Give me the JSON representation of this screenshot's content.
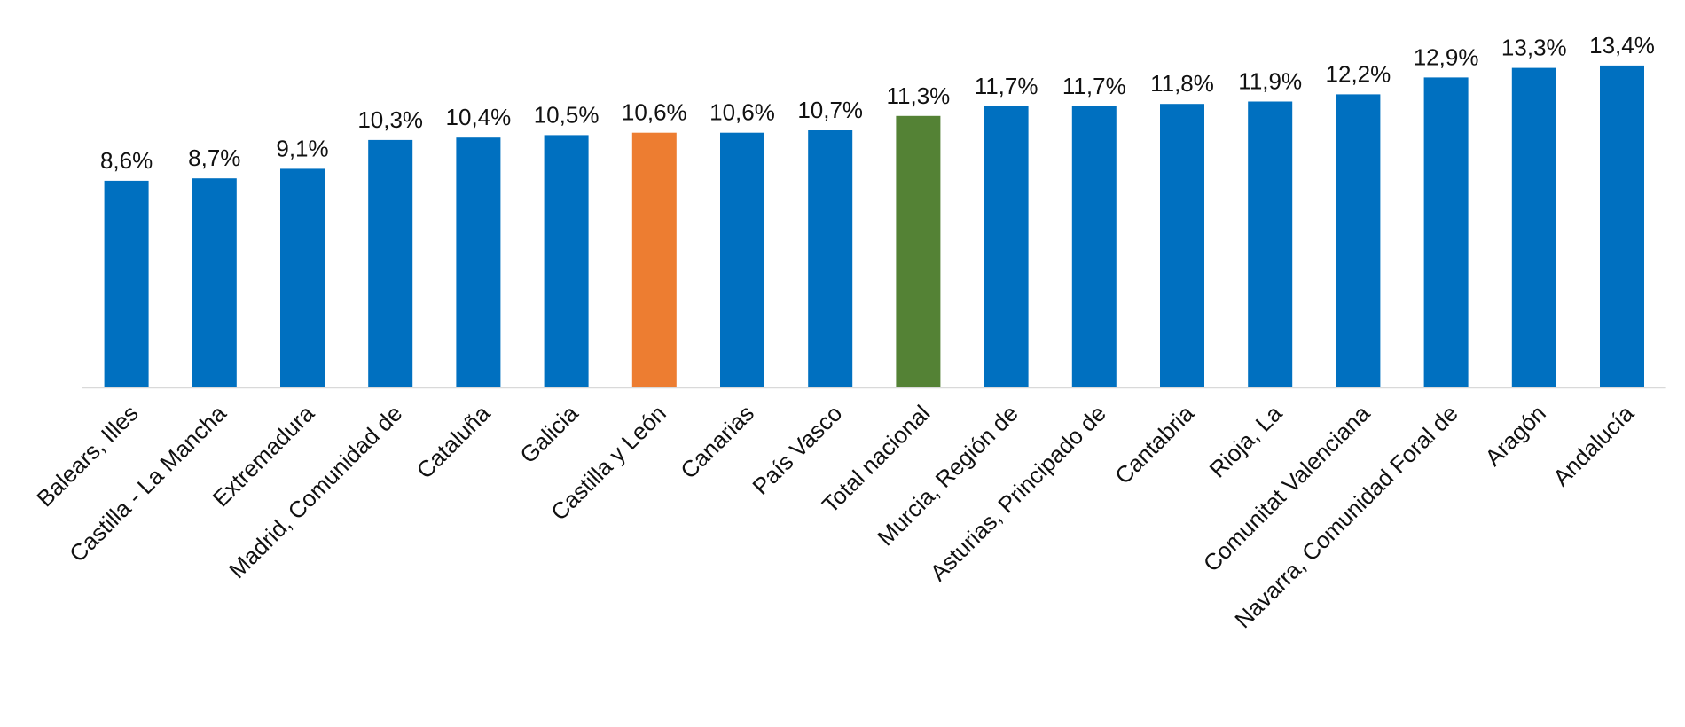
{
  "chart_data": {
    "type": "bar",
    "title": "",
    "xlabel": "",
    "ylabel": "",
    "categories": [
      "Balears, Illes",
      "Castilla - La Mancha",
      "Extremadura",
      "Madrid, Comunidad de",
      "Cataluña",
      "Galicia",
      "Castilla y León",
      "Canarias",
      "País Vasco",
      "Total nacional",
      "Murcia, Región de",
      "Asturias, Principado de",
      "Cantabria",
      "Rioja, La",
      "Comunitat Valenciana",
      "Navarra, Comunidad Foral de",
      "Aragón",
      "Andalucía"
    ],
    "values": [
      8.6,
      8.7,
      9.1,
      10.3,
      10.4,
      10.5,
      10.6,
      10.6,
      10.7,
      11.3,
      11.7,
      11.7,
      11.8,
      11.9,
      12.2,
      12.9,
      13.3,
      13.4
    ],
    "data_labels": [
      "8,6%",
      "8,7%",
      "9,1%",
      "10,3%",
      "10,4%",
      "10,5%",
      "10,6%",
      "10,6%",
      "10,7%",
      "11,3%",
      "11,7%",
      "11,7%",
      "11,8%",
      "11,9%",
      "12,2%",
      "12,9%",
      "13,3%",
      "13,4%"
    ],
    "unit": "%",
    "ylim": [
      0,
      14
    ],
    "grid": false,
    "legend": "none",
    "colors": {
      "default": "#0070C0",
      "Castilla y León": "#ED7D31",
      "Total nacional": "#548235",
      "axis": "#D9D9D9"
    }
  }
}
